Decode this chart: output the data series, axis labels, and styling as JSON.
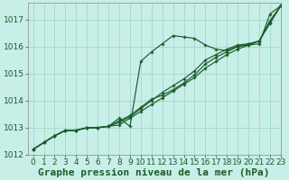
{
  "title": "Graphe pression niveau de la mer (hPa)",
  "background_color": "#c8eee8",
  "grid_color": "#a0d8cc",
  "line_color": "#1a5c2a",
  "marker_color": "#1a5c2a",
  "xlim": [
    -0.5,
    23
  ],
  "ylim": [
    1012.0,
    1017.6
  ],
  "yticks": [
    1012,
    1013,
    1014,
    1015,
    1016,
    1017
  ],
  "xticks": [
    0,
    1,
    2,
    3,
    4,
    5,
    6,
    7,
    8,
    9,
    10,
    11,
    12,
    13,
    14,
    15,
    16,
    17,
    18,
    19,
    20,
    21,
    22,
    23
  ],
  "series_wavy_x": [
    0,
    1,
    2,
    3,
    4,
    5,
    6,
    7,
    8,
    9,
    10,
    11,
    12,
    13,
    14,
    15,
    16,
    17,
    18,
    19,
    20,
    21,
    22,
    23
  ],
  "series_wavy_y": [
    1012.2,
    1012.45,
    1012.7,
    1012.9,
    1012.9,
    1013.0,
    1013.0,
    1013.05,
    1013.35,
    1013.05,
    1015.45,
    1015.8,
    1016.1,
    1016.4,
    1016.35,
    1016.3,
    1016.05,
    1015.9,
    1015.85,
    1016.0,
    1016.05,
    1016.1,
    1017.2,
    1017.5
  ],
  "series_line1_x": [
    0,
    1,
    2,
    3,
    4,
    5,
    6,
    7,
    8,
    9,
    10,
    11,
    12,
    13,
    14,
    15,
    16,
    17,
    18,
    19,
    20,
    21,
    22,
    23
  ],
  "series_line1_y": [
    1012.2,
    1012.45,
    1012.7,
    1012.9,
    1012.9,
    1013.0,
    1013.0,
    1013.05,
    1013.1,
    1013.35,
    1013.6,
    1013.85,
    1014.1,
    1014.35,
    1014.6,
    1014.85,
    1015.2,
    1015.45,
    1015.7,
    1015.9,
    1016.05,
    1016.2,
    1016.85,
    1017.5
  ],
  "series_line2_x": [
    0,
    1,
    2,
    3,
    4,
    5,
    6,
    7,
    8,
    9,
    10,
    11,
    12,
    13,
    14,
    15,
    16,
    17,
    18,
    19,
    20,
    21,
    22,
    23
  ],
  "series_line2_y": [
    1012.2,
    1012.45,
    1012.7,
    1012.9,
    1012.9,
    1013.0,
    1013.0,
    1013.05,
    1013.2,
    1013.4,
    1013.7,
    1014.0,
    1014.3,
    1014.55,
    1014.8,
    1015.1,
    1015.5,
    1015.7,
    1015.9,
    1016.05,
    1016.1,
    1016.2,
    1016.95,
    1017.5
  ],
  "series_line3_x": [
    0,
    1,
    2,
    3,
    4,
    5,
    6,
    7,
    8,
    9,
    10,
    11,
    12,
    13,
    14,
    15,
    16,
    17,
    18,
    19,
    20,
    21,
    22,
    23
  ],
  "series_line3_y": [
    1012.2,
    1012.45,
    1012.7,
    1012.9,
    1012.9,
    1013.0,
    1013.0,
    1013.05,
    1013.25,
    1013.45,
    1013.75,
    1014.05,
    1014.2,
    1014.4,
    1014.65,
    1014.95,
    1015.35,
    1015.6,
    1015.8,
    1016.0,
    1016.08,
    1016.2,
    1016.9,
    1017.5
  ],
  "title_fontsize": 8,
  "tick_fontsize": 6.5
}
